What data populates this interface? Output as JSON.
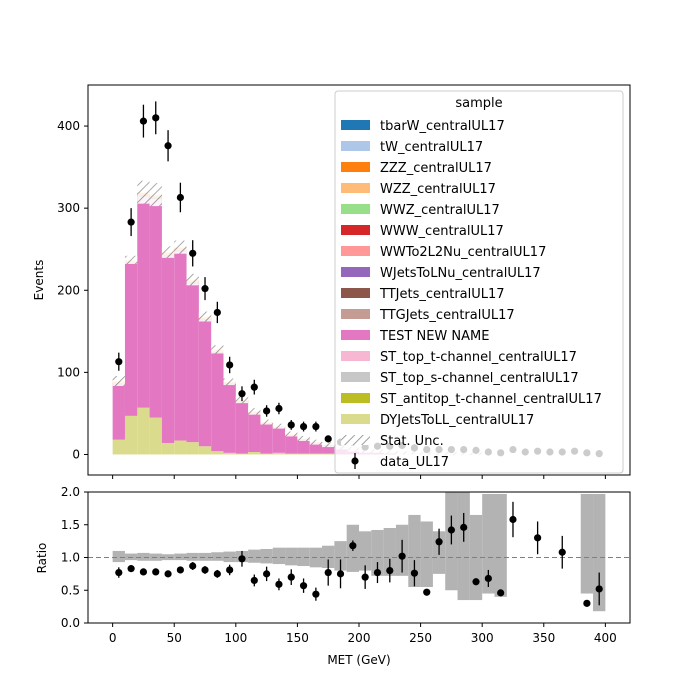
{
  "chart_data": [
    {
      "type": "stacked-histogram",
      "ylabel": "Events",
      "ylim": [
        -25,
        450
      ],
      "yticks": [
        0,
        100,
        200,
        300,
        400
      ],
      "bin_edges": [
        0,
        10,
        20,
        30,
        40,
        50,
        60,
        70,
        80,
        90,
        100,
        110,
        120,
        130,
        140,
        150,
        160,
        170,
        180,
        190,
        200,
        210,
        220,
        230,
        240,
        250,
        260,
        270,
        280,
        290,
        300,
        310,
        320,
        330,
        340,
        350,
        360,
        370,
        380,
        390,
        400
      ],
      "legend": {
        "title": "sample",
        "placement": "upper-right",
        "entries": [
          {
            "label": "tbarW_centralUL17",
            "color": "#1f77b4"
          },
          {
            "label": "tW_centralUL17",
            "color": "#aec7e8"
          },
          {
            "label": "ZZZ_centralUL17",
            "color": "#ff7f0e"
          },
          {
            "label": "WZZ_centralUL17",
            "color": "#ffbb78"
          },
          {
            "label": "WWZ_centralUL17",
            "color": "#98df8a"
          },
          {
            "label": "WWW_centralUL17",
            "color": "#d62728"
          },
          {
            "label": "WWTo2L2Nu_centralUL17",
            "color": "#ff9896"
          },
          {
            "label": "WJetsToLNu_centralUL17",
            "color": "#9467bd"
          },
          {
            "label": "TTJets_centralUL17",
            "color": "#8c564b"
          },
          {
            "label": "TTGJets_centralUL17",
            "color": "#c49c94"
          },
          {
            "label": "TEST NEW NAME",
            "color": "#e377c2"
          },
          {
            "label": "ST_top_t-channel_centralUL17",
            "color": "#f7b6d2"
          },
          {
            "label": "ST_top_s-channel_centralUL17",
            "color": "#c7c7c7"
          },
          {
            "label": "ST_antitop_t-channel_centralUL17",
            "color": "#bcbd22"
          },
          {
            "label": "DYJetsToLL_centralUL17",
            "color": "#dbdb8d"
          },
          {
            "label": "Stat. Unc.",
            "color": "#888888"
          },
          {
            "label": "data_UL17",
            "color": "#000000"
          }
        ]
      },
      "series": [
        {
          "name": "DYJetsToLL_centralUL17",
          "color": "#dbdb8d",
          "values": [
            18,
            47,
            57,
            45,
            14,
            17,
            15,
            10,
            4,
            2,
            1,
            3,
            1,
            2,
            1,
            1,
            1,
            1,
            0,
            0,
            0,
            0,
            0,
            0,
            0,
            0,
            0,
            0,
            0,
            0,
            0,
            0,
            0,
            0,
            0,
            0,
            0,
            0,
            0,
            0
          ]
        },
        {
          "name": "TEST NEW NAME",
          "color": "#e377c2",
          "values": [
            67,
            185,
            257,
            266,
            227,
            230,
            193,
            153,
            119,
            83,
            62,
            47,
            36,
            30,
            22,
            17,
            13,
            10,
            8,
            6,
            5,
            4,
            3,
            2,
            2,
            1,
            1,
            1,
            1,
            1,
            1,
            0,
            0,
            0,
            0,
            0,
            0,
            0,
            0,
            0
          ]
        },
        {
          "name": "TTJets_centralUL17",
          "color": "#8c564b",
          "values": [
            1.5,
            2,
            2,
            2,
            2,
            2,
            2,
            2,
            2,
            1.5,
            1.5,
            1,
            1,
            1,
            1,
            0.5,
            0.5,
            0.5,
            0.5,
            0.5,
            0,
            0,
            0,
            0,
            0,
            0,
            0,
            0,
            0,
            0,
            0,
            0,
            0,
            0,
            0,
            0,
            0,
            0,
            0,
            0
          ]
        },
        {
          "name": "ZZZ_centralUL17",
          "color": "#ff7f0e",
          "values": [
            2,
            2,
            2.5,
            2.5,
            2.5,
            2.5,
            2,
            2,
            2,
            1.5,
            1.5,
            1,
            1,
            1,
            0.5,
            0.5,
            0.5,
            0.5,
            0.5,
            0,
            0,
            0,
            0,
            0,
            0,
            0,
            0,
            0,
            0,
            0,
            0,
            0,
            0,
            0,
            0,
            0,
            0,
            0,
            0,
            0
          ]
        },
        {
          "name": "WZZ_centralUL17",
          "color": "#ffbb78",
          "values": [
            1,
            1,
            1,
            1,
            1,
            1,
            1,
            1,
            1,
            0.5,
            0.5,
            0.5,
            0.5,
            0.5,
            0.5,
            0.5,
            0,
            0,
            0,
            0,
            0,
            0,
            0,
            0,
            0,
            0,
            0,
            0,
            0,
            0,
            0,
            0,
            0,
            0,
            0,
            0,
            0,
            0,
            0,
            0
          ]
        }
      ],
      "stat_unc": [
        6,
        5,
        14,
        14,
        7,
        8,
        7,
        6,
        5,
        4,
        4,
        4,
        3,
        3,
        3,
        3,
        3,
        3,
        3,
        3,
        3,
        2,
        2,
        2,
        2,
        2,
        2,
        2,
        2,
        2,
        1,
        1,
        1,
        1,
        1,
        1,
        1,
        1,
        1,
        1
      ],
      "data": {
        "name": "data_UL17",
        "x": [
          5,
          15,
          25,
          35,
          45,
          55,
          65,
          75,
          85,
          95,
          105,
          115,
          125,
          135,
          145,
          155,
          165,
          175,
          185,
          195,
          205,
          215,
          225,
          235,
          245,
          255,
          265,
          275,
          285,
          295,
          305,
          315,
          325,
          335,
          345,
          355,
          365,
          375,
          385,
          395
        ],
        "y": [
          113,
          283,
          406,
          410,
          376,
          313,
          245,
          202,
          173,
          109,
          74,
          82,
          53,
          56,
          36,
          34,
          34,
          19,
          15,
          15,
          9,
          10,
          10,
          11,
          8,
          6,
          6,
          6,
          6,
          5,
          3,
          2,
          6,
          3,
          4,
          3,
          3,
          4,
          2,
          1
        ],
        "yerr": [
          11,
          17,
          20,
          20,
          19,
          18,
          16,
          14,
          13,
          10,
          9,
          9,
          7,
          7,
          6,
          6,
          6,
          4,
          4,
          4,
          3,
          3,
          3,
          3,
          3,
          2,
          2,
          2,
          2,
          2,
          2,
          1,
          2,
          2,
          2,
          2,
          2,
          2,
          1,
          1
        ]
      }
    },
    {
      "type": "ratio",
      "xlabel": "MET (GeV)",
      "ylabel": "Ratio",
      "xlim": [
        -20,
        420
      ],
      "ylim": [
        0.0,
        2.0
      ],
      "xticks": [
        0,
        50,
        100,
        150,
        200,
        250,
        300,
        350,
        400
      ],
      "yticks": [
        "0.0",
        "0.5",
        "1.0",
        "1.5",
        "2.0"
      ],
      "reference_line": 1.0,
      "unc_band": {
        "low": [
          0.93,
          0.96,
          0.95,
          0.95,
          0.96,
          0.96,
          0.95,
          0.95,
          0.95,
          0.93,
          0.93,
          0.92,
          0.91,
          0.9,
          0.88,
          0.87,
          0.85,
          0.84,
          0.8,
          0.78,
          0.8,
          0.72,
          0.72,
          0.72,
          0.55,
          0.55,
          0.75,
          0.5,
          0.35,
          0.35,
          0.45,
          0.4,
          null,
          null,
          null,
          null,
          null,
          null,
          0.45,
          0.18
        ],
        "high": [
          1.1,
          1.06,
          1.07,
          1.06,
          1.05,
          1.06,
          1.07,
          1.07,
          1.08,
          1.09,
          1.1,
          1.12,
          1.13,
          1.15,
          1.15,
          1.15,
          1.15,
          1.18,
          1.25,
          1.5,
          1.4,
          1.42,
          1.45,
          1.5,
          1.65,
          1.55,
          1.4,
          2.0,
          2.0,
          1.65,
          1.97,
          1.97,
          null,
          null,
          null,
          null,
          null,
          null,
          1.97,
          1.97
        ]
      },
      "x": [
        5,
        15,
        25,
        35,
        45,
        55,
        65,
        75,
        85,
        95,
        105,
        115,
        125,
        135,
        145,
        155,
        165,
        175,
        185,
        195,
        205,
        215,
        225,
        235,
        245,
        255,
        265,
        275,
        285,
        295,
        305,
        315,
        325,
        345,
        365,
        385,
        395
      ],
      "y": [
        0.77,
        0.83,
        0.78,
        0.78,
        0.75,
        0.81,
        0.87,
        0.81,
        0.75,
        0.81,
        0.98,
        0.65,
        0.75,
        0.59,
        0.7,
        0.57,
        0.44,
        0.77,
        0.75,
        1.18,
        0.7,
        0.77,
        0.8,
        1.02,
        0.76,
        0.47,
        1.24,
        1.42,
        1.46,
        0.63,
        0.68,
        0.46,
        1.58,
        1.3,
        1.08,
        0.3,
        0.52
      ],
      "yerr": [
        0.08,
        0.05,
        0.04,
        0.04,
        0.04,
        0.05,
        0.06,
        0.06,
        0.06,
        0.08,
        0.12,
        0.09,
        0.11,
        0.09,
        0.12,
        0.11,
        0.1,
        0.2,
        0.22,
        0.08,
        0.18,
        0.16,
        0.18,
        0.25,
        0.2,
        0.0,
        0.2,
        0.22,
        0.22,
        0.0,
        0.13,
        0.0,
        0.27,
        0.25,
        0.25,
        0.0,
        0.25
      ]
    }
  ]
}
